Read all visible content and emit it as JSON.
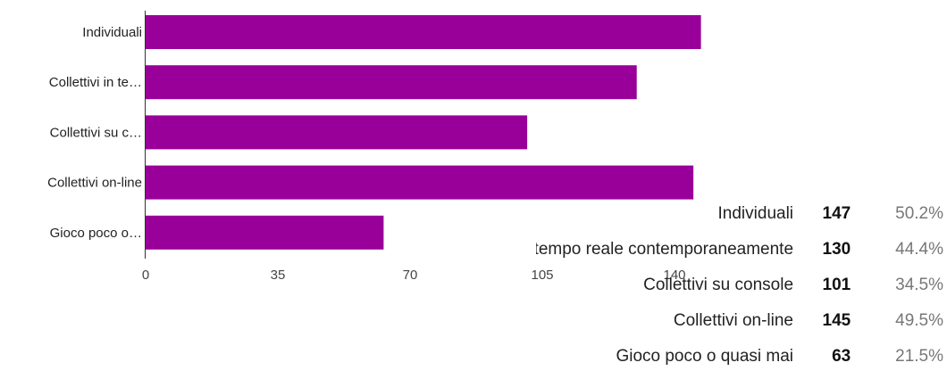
{
  "chart_data": {
    "type": "bar",
    "orientation": "horizontal",
    "categories": [
      "Individuali",
      "Collettivi in te…",
      "Collettivi su c…",
      "Collettivi on-line",
      "Gioco poco o…"
    ],
    "values": [
      147,
      130,
      101,
      145,
      63
    ],
    "xlim": [
      0,
      140
    ],
    "xticks": [
      0,
      35,
      70,
      105,
      140
    ],
    "bar_color": "#990099",
    "grid": false,
    "legend": "none"
  },
  "summary": {
    "rows": [
      {
        "label": "Individuali",
        "count": "147",
        "percent": "50.2%"
      },
      {
        "label": "Collettivi in tempo reale contemporaneamente",
        "count": "130",
        "percent": "44.4%"
      },
      {
        "label": "Collettivi su console",
        "count": "101",
        "percent": "34.5%"
      },
      {
        "label": "Collettivi on-line",
        "count": "145",
        "percent": "49.5%"
      },
      {
        "label": "Gioco poco o quasi mai",
        "count": "63",
        "percent": "21.5%"
      }
    ]
  }
}
